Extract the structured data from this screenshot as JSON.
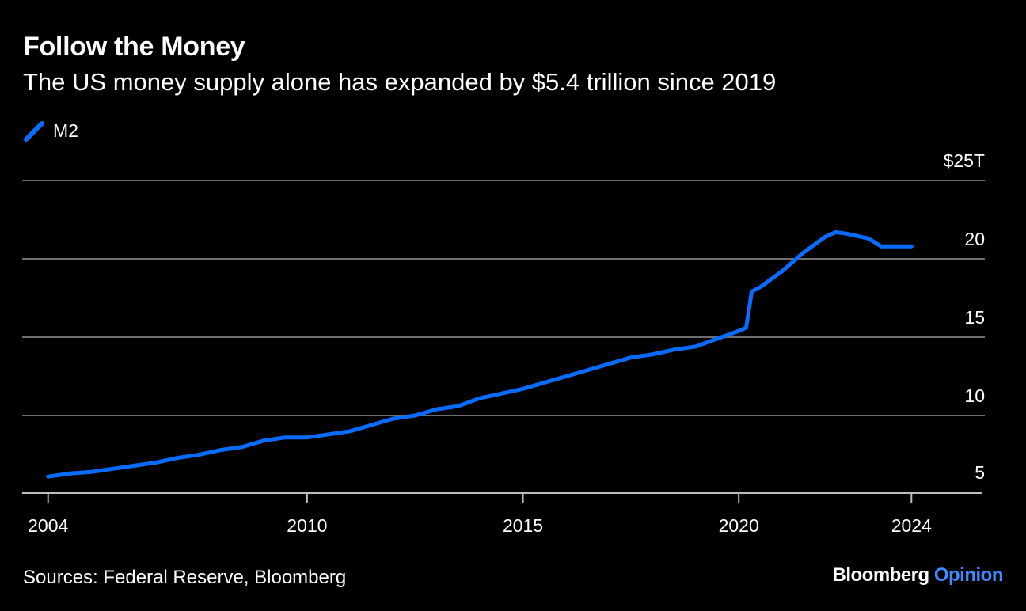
{
  "title": "Follow the Money",
  "subtitle": "The US money supply alone has expanded by $5.4 trillion since 2019",
  "source": "Sources: Federal Reserve, Bloomberg",
  "brand": {
    "name": "Bloomberg",
    "suffix": "Opinion"
  },
  "colors": {
    "line": "#0a6cff",
    "grid": "#6e6e6e",
    "text": "#ffffff",
    "brand_accent": "#3e8bff",
    "background": "#000000"
  },
  "chart_data": {
    "type": "line",
    "title": "Follow the Money",
    "subtitle": "The US money supply alone has expanded by $5.4 trillion since 2019",
    "xlim": [
      2003.4,
      2025.7
    ],
    "ylim": [
      5,
      25
    ],
    "y_ticks": [
      5,
      10,
      15,
      20,
      25
    ],
    "y_tick_labels": [
      "5",
      "10",
      "15",
      "20",
      "$25T"
    ],
    "x_ticks": [
      2004,
      2010,
      2015,
      2020,
      2024
    ],
    "x_tick_labels": [
      "2004",
      "2010",
      "2015",
      "2020",
      "2024"
    ],
    "grid": true,
    "legend": "top-left",
    "series": [
      {
        "name": "M2",
        "x": [
          2004.0,
          2004.5,
          2005.0,
          2005.5,
          2006.0,
          2006.5,
          2007.0,
          2007.5,
          2008.0,
          2008.5,
          2009.0,
          2009.5,
          2010.0,
          2010.5,
          2011.0,
          2011.5,
          2011.75,
          2012.0,
          2012.5,
          2013.0,
          2013.5,
          2014.0,
          2014.5,
          2015.0,
          2015.5,
          2016.0,
          2016.5,
          2017.0,
          2017.5,
          2018.0,
          2018.5,
          2019.0,
          2019.5,
          2020.0,
          2020.17,
          2020.3,
          2020.5,
          2021.0,
          2021.5,
          2022.0,
          2022.25,
          2022.5,
          2023.0,
          2023.3,
          2023.5,
          2024.0
        ],
        "values": [
          6.1,
          6.3,
          6.4,
          6.6,
          6.8,
          7.0,
          7.3,
          7.5,
          7.8,
          8.0,
          8.4,
          8.6,
          8.6,
          8.8,
          9.0,
          9.4,
          9.6,
          9.8,
          10.0,
          10.4,
          10.6,
          11.1,
          11.4,
          11.7,
          12.1,
          12.5,
          12.9,
          13.3,
          13.7,
          13.9,
          14.2,
          14.4,
          14.9,
          15.4,
          15.6,
          17.9,
          18.2,
          19.2,
          20.4,
          21.4,
          21.7,
          21.6,
          21.3,
          20.8,
          20.8,
          20.8
        ]
      }
    ]
  }
}
